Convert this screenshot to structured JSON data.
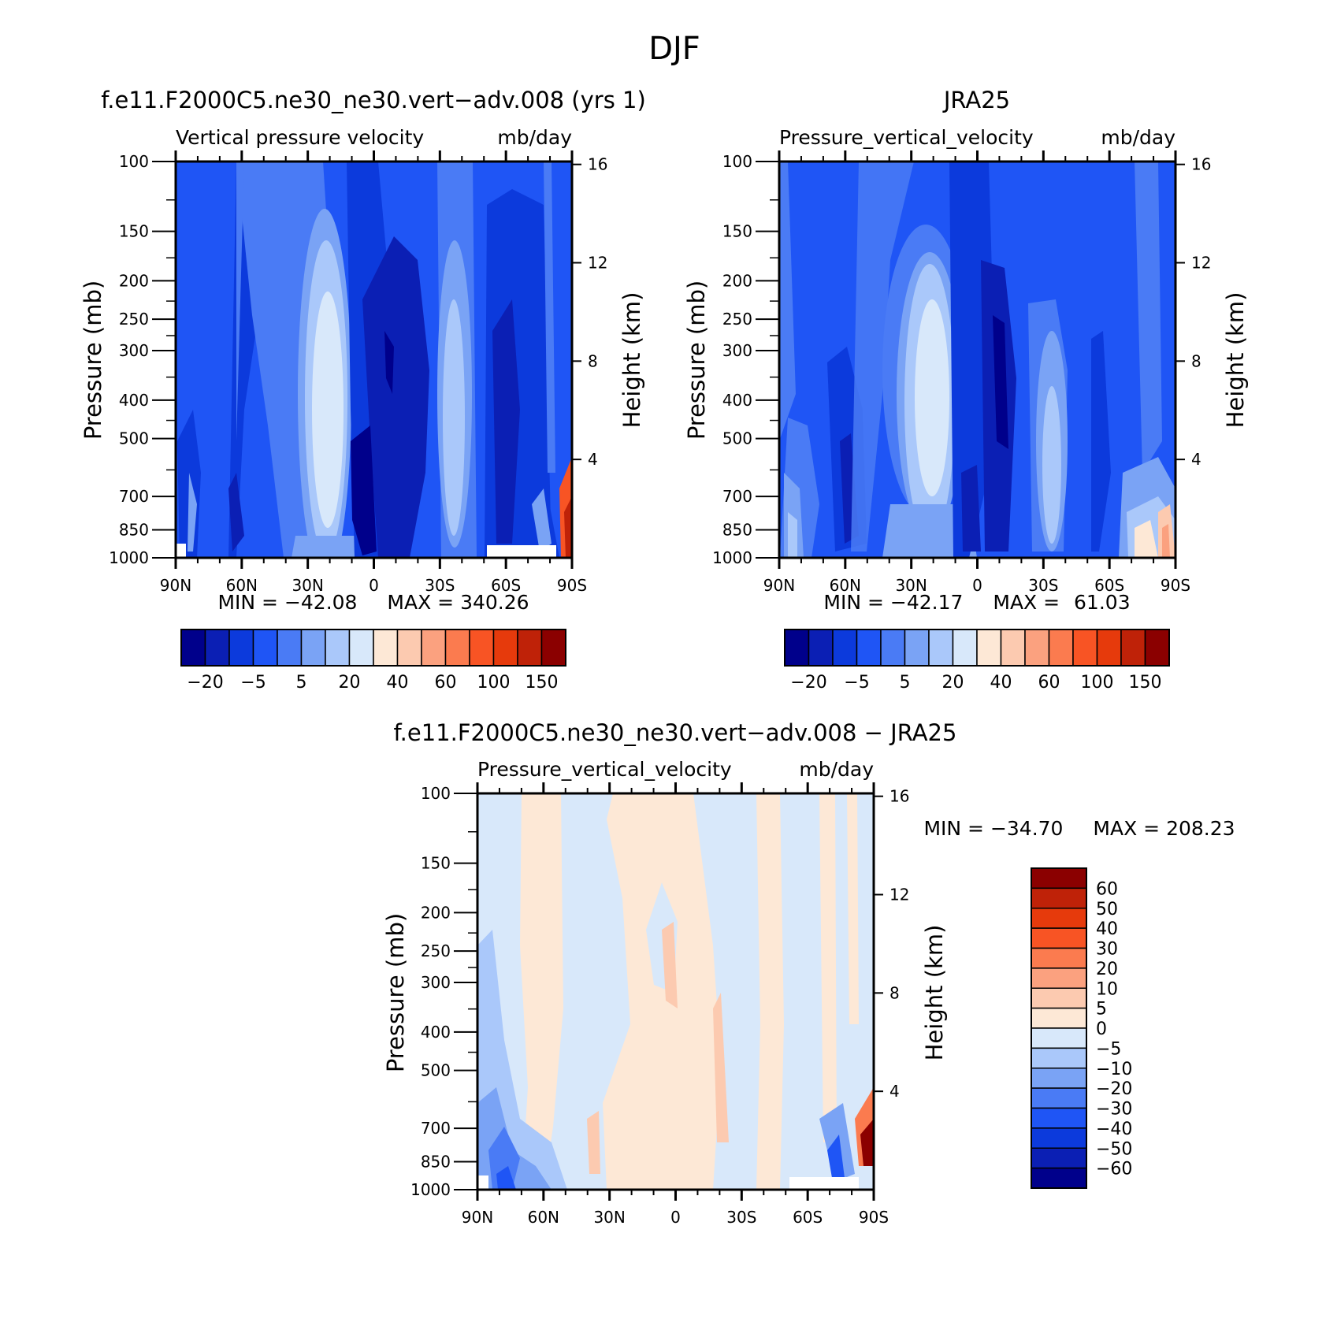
{
  "page": {
    "title": "DJF"
  },
  "chart_data": [
    {
      "type": "heatmap",
      "title": "f.e11.F2000C5.ne30_ne30.vert-adv.008 (yrs 1)",
      "subtitle_left": "Vertical pressure velocity",
      "subtitle_right": "mb/day",
      "ylabel": "Pressure (mb)",
      "ylabel_right": "Height (km)",
      "y_ticks": [
        "100",
        "150",
        "200",
        "250",
        "300",
        "400",
        "500",
        "700",
        "850",
        "1000"
      ],
      "y_right_ticks": [
        "16",
        "12",
        "8",
        "4"
      ],
      "x_ticks": [
        "90N",
        "60N",
        "30N",
        "0",
        "30S",
        "60S",
        "90S"
      ],
      "stats": {
        "min_label": "MIN =",
        "min": "-42.08",
        "max_label": "MAX =",
        "max": "340.26"
      },
      "colorbar": {
        "orientation": "horizontal",
        "colors": [
          "#00008b",
          "#0b1fb4",
          "#0c3adc",
          "#1f55f5",
          "#4a7bf5",
          "#7aa3f5",
          "#aac8fa",
          "#d8e8fa",
          "#fde8d6",
          "#fccab0",
          "#fba17f",
          "#fb7b4f",
          "#f85424",
          "#e63a0c",
          "#bf2208",
          "#8b0000"
        ],
        "labels": [
          "-20",
          "-5",
          "5",
          "20",
          "40",
          "60",
          "100",
          "150"
        ]
      }
    },
    {
      "type": "heatmap",
      "title": "JRA25",
      "subtitle_left": "Pressure_vertical_velocity",
      "subtitle_right": "mb/day",
      "ylabel": "Pressure (mb)",
      "ylabel_right": "Height (km)",
      "y_ticks": [
        "100",
        "150",
        "200",
        "250",
        "300",
        "400",
        "500",
        "700",
        "850",
        "1000"
      ],
      "y_right_ticks": [
        "16",
        "12",
        "8",
        "4"
      ],
      "x_ticks": [
        "90N",
        "60N",
        "30N",
        "0",
        "30S",
        "60S",
        "90S"
      ],
      "stats": {
        "min_label": "MIN =",
        "min": "-42.17",
        "max_label": "MAX =",
        "max": "61.03"
      },
      "colorbar": {
        "orientation": "horizontal",
        "colors": [
          "#00008b",
          "#0b1fb4",
          "#0c3adc",
          "#1f55f5",
          "#4a7bf5",
          "#7aa3f5",
          "#aac8fa",
          "#d8e8fa",
          "#fde8d6",
          "#fccab0",
          "#fba17f",
          "#fb7b4f",
          "#f85424",
          "#e63a0c",
          "#bf2208",
          "#8b0000"
        ],
        "labels": [
          "-20",
          "-5",
          "5",
          "20",
          "40",
          "60",
          "100",
          "150"
        ]
      }
    },
    {
      "type": "heatmap",
      "title": "f.e11.F2000C5.ne30_ne30.vert-adv.008 - JRA25",
      "subtitle_left": "Pressure_vertical_velocity",
      "subtitle_right": "mb/day",
      "ylabel": "Pressure (mb)",
      "ylabel_right": "Height (km)",
      "y_ticks": [
        "100",
        "150",
        "200",
        "250",
        "300",
        "400",
        "500",
        "700",
        "850",
        "1000"
      ],
      "y_right_ticks": [
        "16",
        "12",
        "8",
        "4"
      ],
      "x_ticks": [
        "90N",
        "60N",
        "30N",
        "0",
        "30S",
        "60S",
        "90S"
      ],
      "stats": {
        "min_label": "MIN =",
        "min": "-34.70",
        "max_label": "MAX =",
        "max": "208.23"
      },
      "colorbar": {
        "orientation": "vertical",
        "colors": [
          "#8b0000",
          "#bf2208",
          "#e63a0c",
          "#f85424",
          "#fb7b4f",
          "#fba17f",
          "#fccab0",
          "#fde8d6",
          "#d8e8fa",
          "#aac8fa",
          "#7aa3f5",
          "#4a7bf5",
          "#1f55f5",
          "#0c3adc",
          "#0b1fb4",
          "#00008b"
        ],
        "labels": [
          "60",
          "50",
          "40",
          "30",
          "20",
          "10",
          "5",
          "0",
          "-5",
          "-10",
          "-20",
          "-30",
          "-40",
          "-50",
          "-60"
        ]
      }
    }
  ]
}
